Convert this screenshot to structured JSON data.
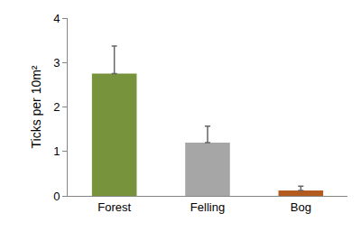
{
  "chart_data": {
    "type": "bar",
    "y_label": "Ticks per 10m²",
    "categories": [
      "Forest",
      "Felling",
      "Bog"
    ],
    "values": [
      2.75,
      1.2,
      0.12
    ],
    "errors": [
      0.62,
      0.37,
      0.1
    ],
    "colors": [
      "#77933c",
      "#a6a6a6",
      "#b35a1f"
    ],
    "ylim": [
      0,
      4
    ],
    "yticks": [
      0,
      1,
      2,
      3,
      4
    ],
    "grid": false
  }
}
